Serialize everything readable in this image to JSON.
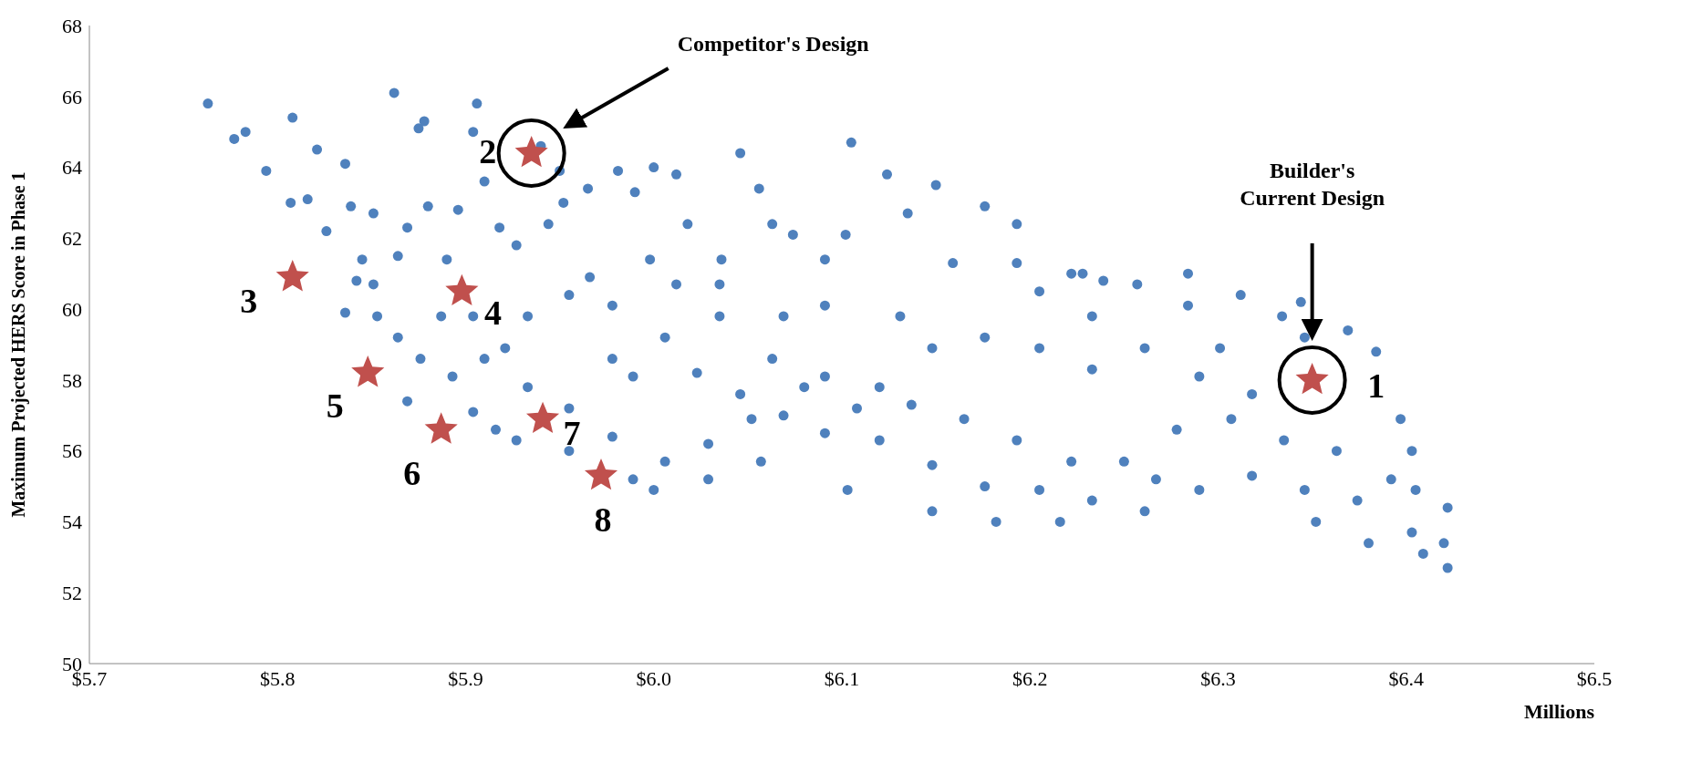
{
  "chart_data": {
    "type": "scatter",
    "ylabel": "Maximum Projected HERS Score in Phase 1",
    "xlabel": "Millions",
    "xlim": [
      5.7,
      6.5
    ],
    "xticks": [
      {
        "value": 5.7,
        "label": "$5.7"
      },
      {
        "value": 5.8,
        "label": "$5.8"
      },
      {
        "value": 5.9,
        "label": "$5.9"
      },
      {
        "value": 6.0,
        "label": "$6.0"
      },
      {
        "value": 6.1,
        "label": "$6.1"
      },
      {
        "value": 6.2,
        "label": "$6.2"
      },
      {
        "value": 6.3,
        "label": "$6.3"
      },
      {
        "value": 6.4,
        "label": "$6.4"
      },
      {
        "value": 6.5,
        "label": "$6.5"
      }
    ],
    "ylim": [
      50,
      68
    ],
    "yticks": [
      50,
      52,
      54,
      56,
      58,
      60,
      62,
      64,
      66,
      68
    ],
    "annotations": [
      {
        "text": "1",
        "x": 6.35,
        "y": 58
      },
      {
        "text": "2",
        "x": 5.935,
        "y": 64.4
      },
      {
        "text": "3",
        "x": 5.808,
        "y": 60.9
      },
      {
        "text": "4",
        "x": 5.898,
        "y": 60.5
      },
      {
        "text": "5",
        "x": 5.848,
        "y": 58.2
      },
      {
        "text": "6",
        "x": 5.887,
        "y": 56.6
      },
      {
        "text": "7",
        "x": 5.941,
        "y": 56.9
      },
      {
        "text": "8",
        "x": 5.972,
        "y": 55.3
      },
      "Competitor's Design",
      "Builder's Current Design"
    ],
    "series": [
      {
        "color": "#4f81bd",
        "marker": "circle",
        "x": [
          5.763,
          5.777,
          5.783,
          5.794,
          5.808,
          5.807,
          5.816,
          5.821,
          5.826,
          5.836,
          5.839,
          5.845,
          5.851,
          5.862,
          5.869,
          5.875,
          5.878,
          5.88,
          5.89,
          5.896,
          5.904,
          5.906,
          5.91,
          5.918,
          5.927,
          5.94,
          5.944,
          5.952,
          5.965,
          5.981,
          5.99,
          6.0,
          6.012,
          6.018,
          6.046,
          6.056,
          6.074,
          6.105,
          6.124,
          6.135,
          6.15,
          6.176,
          6.193,
          6.222,
          6.239,
          6.257,
          6.284,
          6.312,
          6.334,
          6.346,
          6.205,
          6.233,
          6.261,
          6.29,
          6.318,
          6.233,
          6.205,
          6.176,
          6.148,
          6.12,
          6.091,
          6.063,
          6.035,
          6.006,
          5.978,
          5.989,
          6.023,
          6.046,
          6.069,
          6.091,
          6.12,
          6.148,
          6.176,
          6.205,
          6.233,
          6.261,
          6.29,
          6.318,
          6.346,
          6.374,
          6.403,
          6.42,
          6.422,
          6.422,
          6.392,
          6.363,
          6.335,
          6.307,
          6.278,
          6.25,
          6.222,
          6.193,
          6.165,
          6.137,
          6.108,
          6.08,
          6.052,
          6.029,
          6.006,
          5.989,
          5.978,
          5.955,
          5.933,
          5.921,
          5.91,
          5.893,
          5.876,
          5.864,
          5.853,
          5.836,
          5.887,
          5.904,
          5.933,
          5.955,
          5.978,
          6.012,
          6.035,
          6.069,
          6.091,
          6.131,
          6.159,
          6.193,
          6.228,
          6.284,
          6.301,
          6.397,
          6.352,
          6.38,
          6.409,
          6.267,
          6.216,
          6.182,
          6.148,
          6.103,
          6.057,
          6.029,
          6.0,
          5.955,
          5.927,
          5.916,
          5.842,
          5.864,
          5.851,
          5.966,
          5.998,
          6.036,
          6.091,
          5.95,
          6.063,
          6.102,
          5.869,
          5.904,
          6.369,
          6.344,
          6.384,
          6.405,
          6.403
        ],
        "values": [
          65.8,
          64.8,
          65.0,
          63.9,
          65.4,
          63.0,
          63.1,
          64.5,
          62.2,
          64.1,
          62.9,
          61.4,
          62.7,
          66.1,
          62.3,
          65.1,
          65.3,
          62.9,
          61.4,
          62.8,
          65.0,
          65.8,
          63.6,
          62.3,
          61.8,
          64.6,
          62.4,
          63.0,
          63.4,
          63.9,
          63.3,
          64.0,
          63.8,
          62.4,
          64.4,
          63.4,
          62.1,
          64.7,
          63.8,
          62.7,
          63.5,
          62.9,
          62.4,
          61.0,
          60.8,
          60.7,
          61.0,
          60.4,
          59.8,
          59.2,
          60.5,
          59.8,
          58.9,
          58.1,
          57.6,
          58.3,
          58.9,
          59.2,
          58.9,
          57.8,
          58.1,
          58.6,
          59.8,
          59.2,
          58.6,
          58.1,
          58.2,
          57.6,
          57.0,
          56.5,
          56.3,
          55.6,
          55.0,
          54.9,
          54.6,
          54.3,
          54.9,
          55.3,
          54.9,
          54.6,
          53.7,
          53.4,
          52.7,
          54.4,
          55.2,
          56.0,
          56.3,
          56.9,
          56.6,
          55.7,
          55.7,
          56.3,
          56.9,
          57.3,
          57.2,
          57.8,
          56.9,
          56.2,
          55.7,
          55.2,
          56.4,
          57.2,
          57.8,
          58.9,
          58.6,
          58.1,
          58.6,
          59.2,
          59.8,
          59.9,
          59.8,
          59.8,
          59.8,
          60.4,
          60.1,
          60.7,
          60.7,
          59.8,
          60.1,
          59.8,
          61.3,
          61.3,
          61.0,
          60.1,
          58.9,
          56.9,
          54.0,
          53.4,
          53.1,
          55.2,
          54.0,
          54.0,
          54.3,
          54.9,
          55.7,
          55.2,
          54.9,
          56.0,
          56.3,
          56.6,
          60.8,
          61.5,
          60.7,
          60.9,
          61.4,
          61.4,
          61.4,
          63.9,
          62.4,
          62.1,
          57.4,
          57.1,
          59.4,
          60.2,
          58.8,
          54.9,
          56.0
        ]
      },
      {
        "color": "#c0504d",
        "marker": "star",
        "x": [
          6.35,
          5.935,
          5.808,
          5.898,
          5.848,
          5.887,
          5.941,
          5.972
        ],
        "values": [
          58,
          64.4,
          60.9,
          60.5,
          58.2,
          56.6,
          56.9,
          55.3
        ]
      }
    ]
  }
}
